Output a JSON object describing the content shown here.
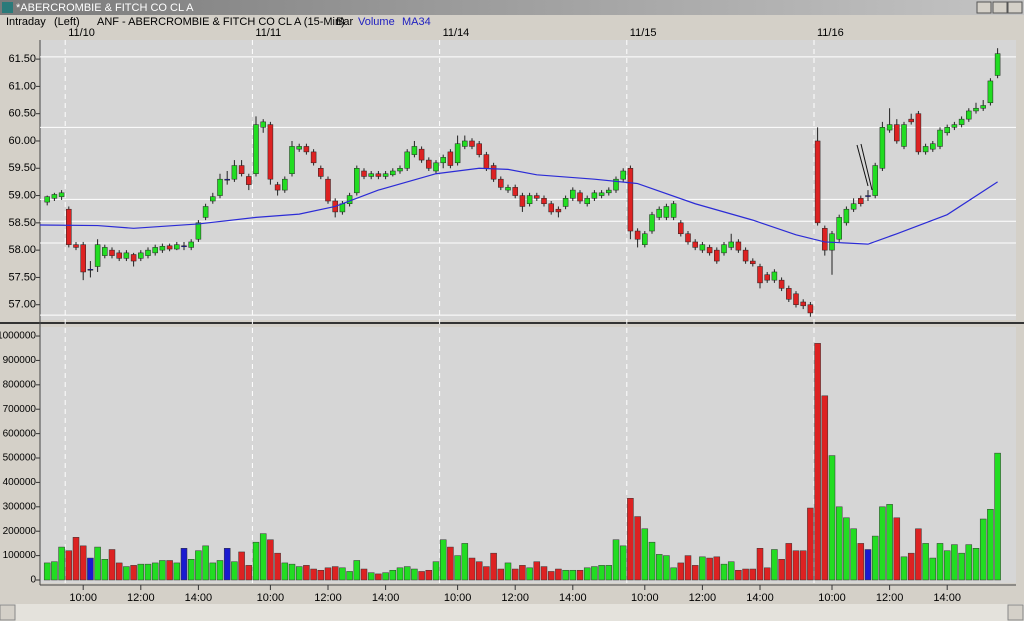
{
  "window_title": "*ABERCROMBIE & FITCH CO CL A",
  "chart_data": {
    "type": "candlestick",
    "header": [
      "Intraday",
      "(Left)",
      "ANF - ABERCROMBIE & FITCH CO CL A (15-Min)",
      "Bar"
    ],
    "xlim": [
      -1,
      134
    ],
    "xticks": [
      {
        "value": 5,
        "label": "10:00"
      },
      {
        "value": 13,
        "label": "12:00"
      },
      {
        "value": 21,
        "label": "14:00"
      },
      {
        "value": 31,
        "label": "10:00"
      },
      {
        "value": 39,
        "label": "12:00"
      },
      {
        "value": 47,
        "label": "14:00"
      },
      {
        "value": 57,
        "label": "10:00"
      },
      {
        "value": 65,
        "label": "12:00"
      },
      {
        "value": 73,
        "label": "14:00"
      },
      {
        "value": 83,
        "label": "10:00"
      },
      {
        "value": 91,
        "label": "12:00"
      },
      {
        "value": 99,
        "label": "14:00"
      },
      {
        "value": 109,
        "label": "10:00"
      },
      {
        "value": 117,
        "label": "12:00"
      },
      {
        "value": 125,
        "label": "14:00"
      }
    ],
    "date_ticks": [
      {
        "value": 3,
        "label": "11/10"
      },
      {
        "value": 29,
        "label": "11/11"
      },
      {
        "value": 55,
        "label": "11/14"
      },
      {
        "value": 81,
        "label": "11/15"
      },
      {
        "value": 107,
        "label": "11/16"
      }
    ],
    "ylim": [
      56.72,
      61.85
    ],
    "yticks": [
      {
        "value": 57,
        "label": "57.00"
      },
      {
        "value": 57.5,
        "label": "57.50"
      },
      {
        "value": 58,
        "label": "58.00"
      },
      {
        "value": 58.5,
        "label": "58.50"
      },
      {
        "value": 59,
        "label": "59.00"
      },
      {
        "value": 59.5,
        "label": "59.50"
      },
      {
        "value": 60,
        "label": "60.00"
      },
      {
        "value": 60.5,
        "label": "60.50"
      },
      {
        "value": 61,
        "label": "61.00"
      },
      {
        "value": 61.5,
        "label": "61.50"
      }
    ],
    "levels": [
      61.54,
      60.25,
      58.93,
      58.53,
      58.13,
      56.81
    ],
    "up_color": "#22dd22",
    "down_color": "#dd2222",
    "flat_color": "#1a1ad0",
    "open": [
      58.88,
      58.95,
      58.98,
      58.75,
      58.1,
      58.1,
      57.65,
      57.7,
      57.9,
      58.0,
      57.95,
      57.85,
      57.92,
      57.85,
      57.9,
      57.95,
      58.0,
      58.08,
      58.02,
      58.08,
      58.05,
      58.2,
      58.6,
      58.9,
      59.0,
      59.3,
      59.3,
      59.55,
      59.35,
      59.4,
      60.25,
      60.3,
      59.2,
      59.1,
      59.4,
      59.85,
      59.9,
      59.8,
      59.5,
      59.3,
      58.9,
      58.7,
      58.85,
      59.05,
      59.45,
      59.35,
      59.4,
      59.35,
      59.38,
      59.45,
      59.5,
      59.75,
      59.85,
      59.65,
      59.45,
      59.6,
      59.8,
      59.6,
      59.9,
      60.0,
      59.95,
      59.75,
      59.55,
      59.3,
      59.1,
      59.15,
      59.0,
      58.85,
      59.0,
      58.95,
      58.85,
      58.75,
      58.8,
      58.95,
      59.05,
      58.85,
      58.95,
      59.0,
      59.05,
      59.1,
      59.3,
      59.5,
      58.35,
      58.1,
      58.35,
      58.6,
      58.6,
      58.6,
      58.5,
      58.3,
      58.15,
      58.0,
      58.05,
      58.0,
      57.95,
      58.05,
      58.15,
      58.0,
      57.8,
      57.7,
      57.55,
      57.45,
      57.45,
      57.3,
      57.2,
      57.05,
      57.0,
      60.0,
      58.4,
      58.0,
      58.2,
      58.5,
      58.75,
      58.95,
      59.0,
      59.0,
      59.5,
      60.2,
      60.3,
      59.9,
      60.4,
      60.5,
      59.8,
      59.85,
      59.9,
      60.15,
      60.25,
      60.3,
      60.4,
      60.55,
      60.6,
      60.7,
      61.2
    ],
    "high": [
      59.0,
      59.05,
      59.1,
      58.8,
      58.15,
      58.15,
      57.8,
      58.2,
      58.1,
      58.05,
      58.0,
      58.0,
      57.95,
      58.0,
      58.05,
      58.1,
      58.12,
      58.12,
      58.15,
      58.15,
      58.2,
      58.55,
      58.85,
      59.05,
      59.4,
      59.45,
      59.65,
      59.65,
      59.4,
      60.45,
      60.4,
      60.35,
      59.25,
      59.35,
      60.0,
      59.95,
      59.95,
      59.85,
      59.55,
      59.35,
      58.95,
      58.9,
      59.05,
      59.55,
      59.5,
      59.45,
      59.45,
      59.45,
      59.5,
      59.55,
      59.85,
      60.0,
      59.9,
      59.7,
      59.65,
      59.75,
      59.85,
      60.1,
      60.1,
      60.05,
      60.0,
      59.8,
      59.6,
      59.35,
      59.2,
      59.2,
      59.05,
      59.05,
      59.05,
      59.0,
      58.9,
      58.8,
      59.0,
      59.15,
      59.1,
      59.0,
      59.1,
      59.1,
      59.15,
      59.35,
      59.5,
      59.55,
      58.4,
      58.35,
      58.7,
      58.8,
      58.85,
      58.9,
      58.55,
      58.35,
      58.2,
      58.15,
      58.1,
      58.05,
      58.15,
      58.3,
      58.2,
      58.05,
      57.85,
      57.75,
      57.6,
      57.65,
      57.5,
      57.35,
      57.25,
      57.1,
      57.05,
      60.25,
      58.45,
      58.35,
      58.65,
      58.8,
      58.95,
      59.0,
      59.1,
      59.6,
      60.35,
      60.6,
      60.4,
      60.35,
      60.5,
      60.55,
      59.95,
      60.0,
      60.25,
      60.3,
      60.35,
      60.45,
      60.6,
      60.7,
      60.75,
      61.15,
      61.7
    ],
    "low": [
      58.82,
      58.9,
      58.92,
      58.05,
      58.0,
      57.45,
      57.5,
      57.6,
      57.85,
      57.85,
      57.8,
      57.8,
      57.7,
      57.8,
      57.85,
      57.9,
      57.95,
      57.98,
      58.0,
      58.0,
      58.0,
      58.15,
      58.55,
      58.85,
      58.95,
      59.2,
      59.25,
      59.35,
      59.1,
      59.35,
      60.15,
      59.2,
      59.0,
      59.05,
      59.35,
      59.8,
      59.75,
      59.55,
      59.3,
      58.85,
      58.6,
      58.65,
      58.8,
      59.0,
      59.3,
      59.3,
      59.3,
      59.3,
      59.35,
      59.4,
      59.45,
      59.7,
      59.6,
      59.45,
      59.4,
      59.5,
      59.5,
      59.55,
      59.85,
      59.85,
      59.7,
      59.45,
      59.25,
      59.1,
      59.05,
      58.95,
      58.7,
      58.8,
      58.9,
      58.8,
      58.65,
      58.6,
      58.75,
      58.9,
      58.85,
      58.8,
      58.9,
      58.95,
      59.0,
      59.05,
      59.25,
      58.2,
      58.05,
      58.05,
      58.3,
      58.55,
      58.55,
      58.55,
      58.25,
      58.1,
      58.0,
      57.95,
      57.9,
      57.75,
      57.9,
      58.0,
      57.95,
      57.75,
      57.7,
      57.3,
      57.4,
      57.4,
      57.25,
      57.05,
      56.95,
      56.92,
      56.78,
      58.45,
      57.9,
      57.55,
      58.15,
      58.45,
      58.7,
      58.8,
      58.9,
      58.95,
      59.45,
      60.15,
      59.95,
      59.85,
      60.3,
      59.75,
      59.75,
      59.8,
      59.85,
      60.1,
      60.2,
      60.25,
      60.35,
      60.5,
      60.55,
      60.65,
      61.15
    ],
    "close": [
      58.98,
      59.02,
      59.05,
      58.1,
      58.05,
      57.6,
      57.65,
      58.1,
      58.05,
      57.9,
      57.85,
      57.95,
      57.8,
      57.95,
      58.0,
      58.05,
      58.07,
      58.02,
      58.1,
      58.08,
      58.15,
      58.5,
      58.8,
      58.98,
      59.3,
      59.3,
      59.55,
      59.4,
      59.2,
      60.3,
      60.35,
      59.3,
      59.1,
      59.3,
      59.9,
      59.9,
      59.8,
      59.6,
      59.35,
      58.9,
      58.7,
      58.85,
      59.0,
      59.5,
      59.35,
      59.4,
      59.35,
      59.4,
      59.45,
      59.5,
      59.8,
      59.9,
      59.65,
      59.5,
      59.6,
      59.7,
      59.55,
      59.95,
      60.0,
      59.9,
      59.75,
      59.5,
      59.3,
      59.15,
      59.15,
      59.0,
      58.8,
      59.0,
      58.95,
      58.85,
      58.7,
      58.7,
      58.95,
      59.1,
      58.9,
      58.95,
      59.05,
      59.05,
      59.1,
      59.3,
      59.45,
      58.35,
      58.2,
      58.3,
      58.65,
      58.75,
      58.8,
      58.85,
      58.3,
      58.15,
      58.05,
      58.1,
      57.95,
      57.8,
      58.1,
      58.15,
      58.0,
      57.8,
      57.75,
      57.4,
      57.45,
      57.6,
      57.3,
      57.1,
      57.0,
      56.98,
      56.85,
      58.5,
      58.0,
      58.3,
      58.6,
      58.75,
      58.85,
      58.85,
      59.0,
      59.55,
      60.25,
      60.3,
      60.0,
      60.3,
      60.35,
      59.8,
      59.9,
      59.95,
      60.2,
      60.25,
      60.3,
      60.4,
      60.55,
      60.6,
      60.65,
      61.1,
      61.6
    ],
    "volume": {
      "name": "Volume",
      "color": "#1a1ad0",
      "ylim": [
        0,
        1037000
      ],
      "yticks": [
        0,
        100000,
        200000,
        300000,
        400000,
        500000,
        600000,
        700000,
        800000,
        900000,
        1000000
      ],
      "values": [
        70000,
        75000,
        135000,
        120000,
        175000,
        140000,
        90000,
        135000,
        85000,
        125000,
        70000,
        55000,
        60000,
        65000,
        65000,
        70000,
        80000,
        80000,
        70000,
        130000,
        85000,
        120000,
        140000,
        70000,
        80000,
        130000,
        75000,
        115000,
        60000,
        155000,
        190000,
        165000,
        110000,
        70000,
        65000,
        55000,
        60000,
        45000,
        40000,
        50000,
        55000,
        50000,
        35000,
        80000,
        45000,
        30000,
        25000,
        30000,
        40000,
        50000,
        55000,
        45000,
        35000,
        40000,
        75000,
        165000,
        135000,
        100000,
        150000,
        90000,
        75000,
        55000,
        110000,
        45000,
        70000,
        45000,
        60000,
        50000,
        75000,
        55000,
        35000,
        45000,
        40000,
        40000,
        40000,
        50000,
        55000,
        60000,
        60000,
        165000,
        140000,
        335000,
        260000,
        210000,
        155000,
        105000,
        100000,
        50000,
        70000,
        100000,
        60000,
        95000,
        90000,
        95000,
        65000,
        75000,
        40000,
        45000,
        45000,
        130000,
        50000,
        125000,
        85000,
        150000,
        120000,
        120000,
        295000,
        970000,
        755000,
        510000,
        300000,
        255000,
        210000,
        150000,
        125000,
        180000,
        300000,
        310000,
        255000,
        95000,
        110000,
        210000,
        150000,
        90000,
        150000,
        120000,
        145000,
        110000,
        145000,
        130000,
        250000,
        290000,
        520000
      ]
    },
    "ma": {
      "name": "MA34",
      "color": "#2b2bd6",
      "x": [
        -1,
        7,
        12,
        21,
        29,
        35,
        40,
        46,
        54,
        60,
        64,
        68,
        76,
        82,
        90,
        98,
        104,
        108,
        114,
        118,
        125,
        132
      ],
      "values": [
        58.46,
        58.45,
        58.4,
        58.48,
        58.6,
        58.66,
        58.8,
        59.1,
        59.4,
        59.5,
        59.48,
        59.38,
        59.3,
        59.22,
        58.85,
        58.55,
        58.28,
        58.15,
        58.11,
        58.3,
        58.65,
        59.25
      ]
    }
  }
}
